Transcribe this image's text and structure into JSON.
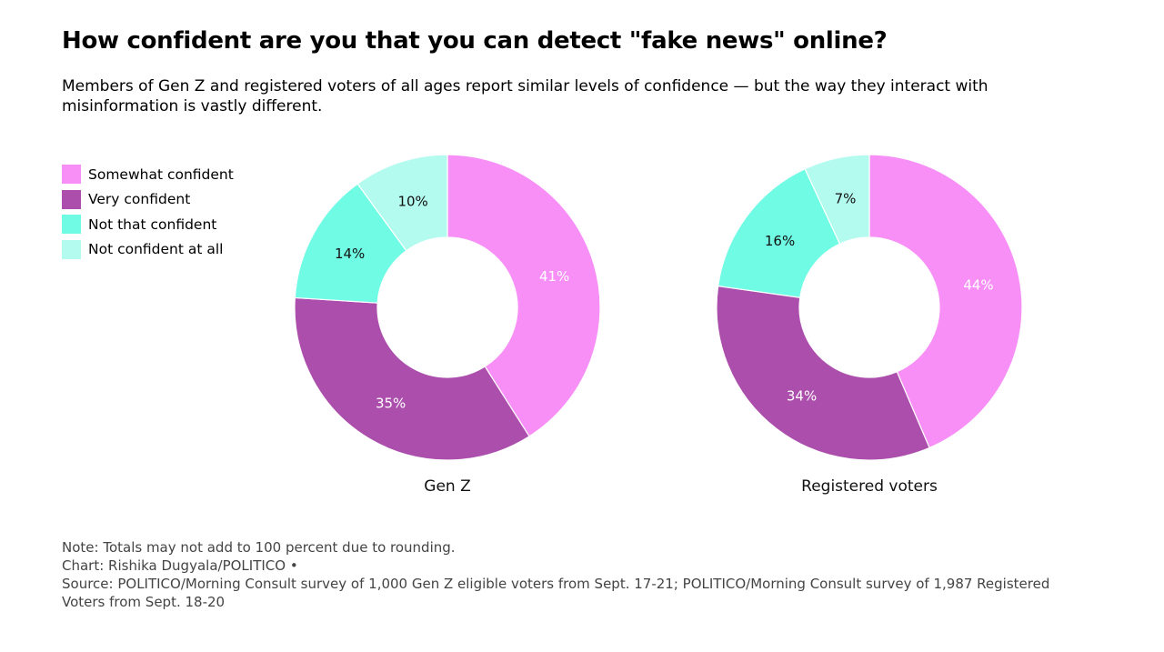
{
  "title": "How confident are you that you can detect \"fake news\" online?",
  "subtitle": "Members of Gen Z and registered voters of all ages report similar levels of confidence — but the way they interact with misinformation is vastly different.",
  "legend": [
    {
      "label": "Somewhat confident",
      "color": "#f78ff6"
    },
    {
      "label": "Very confident",
      "color": "#ab4eac"
    },
    {
      "label": "Not that confident",
      "color": "#70fbe5"
    },
    {
      "label": "Not confident at all",
      "color": "#b3fbee"
    }
  ],
  "chart_data": [
    {
      "type": "pie",
      "title": "Gen Z",
      "categories": [
        "Somewhat confident",
        "Very confident",
        "Not that confident",
        "Not confident at all"
      ],
      "values": [
        41,
        35,
        14,
        10
      ],
      "labels": [
        "41%",
        "35%",
        "14%",
        "10%"
      ]
    },
    {
      "type": "pie",
      "title": "Registered voters",
      "categories": [
        "Somewhat confident",
        "Very confident",
        "Not that confident",
        "Not confident at all"
      ],
      "values": [
        44,
        34,
        16,
        7
      ],
      "labels": [
        "44%",
        "34%",
        "16%",
        "7%"
      ]
    }
  ],
  "footer": {
    "note": "Note: Totals may not add to 100 percent due to rounding.",
    "credit": "Chart: Rishika Dugyala/POLITICO •",
    "source": "Source: POLITICO/Morning Consult survey of 1,000 Gen Z eligible voters from Sept. 17-21; POLITICO/Morning Consult survey of 1,987 Registered Voters from Sept. 18-20"
  }
}
